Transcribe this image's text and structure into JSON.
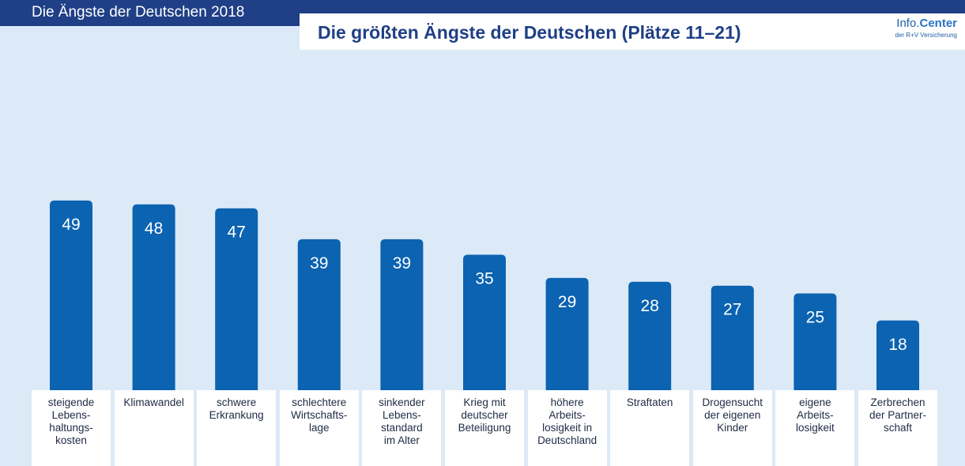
{
  "header": {
    "super_title": "Die Ängste der Deutschen 2018",
    "logo_prefix": "Info.",
    "logo_main": "Center",
    "logo_sub": "der R+V Versicherung"
  },
  "colors": {
    "band": "#1f3f86",
    "bar": "#0b63b1",
    "background": "#dce9f6"
  },
  "chart_data": {
    "type": "bar",
    "title": "Die größten Ängste der Deutschen (Plätze 11–21)",
    "categories": [
      "steigende\nLebens-\nhaltungs-\nkosten",
      "Klimawandel",
      "schwere\nErkrankung",
      "schlechtere\nWirtschafts-\nlage",
      "sinkender\nLebens-\nstandard\nim Alter",
      "Krieg mit\ndeutscher\nBeteiligung",
      "höhere\nArbeits-\nlosigkeit in\nDeutschland",
      "Straftaten",
      "Drogensucht\nder eigenen\nKinder",
      "eigene\nArbeits-\nlosigkeit",
      "Zerbrechen\nder Partner-\nschaft"
    ],
    "values": [
      49,
      48,
      47,
      39,
      39,
      35,
      29,
      28,
      27,
      25,
      18
    ],
    "ylim": [
      0,
      100
    ],
    "grid": false,
    "legend": "none"
  }
}
